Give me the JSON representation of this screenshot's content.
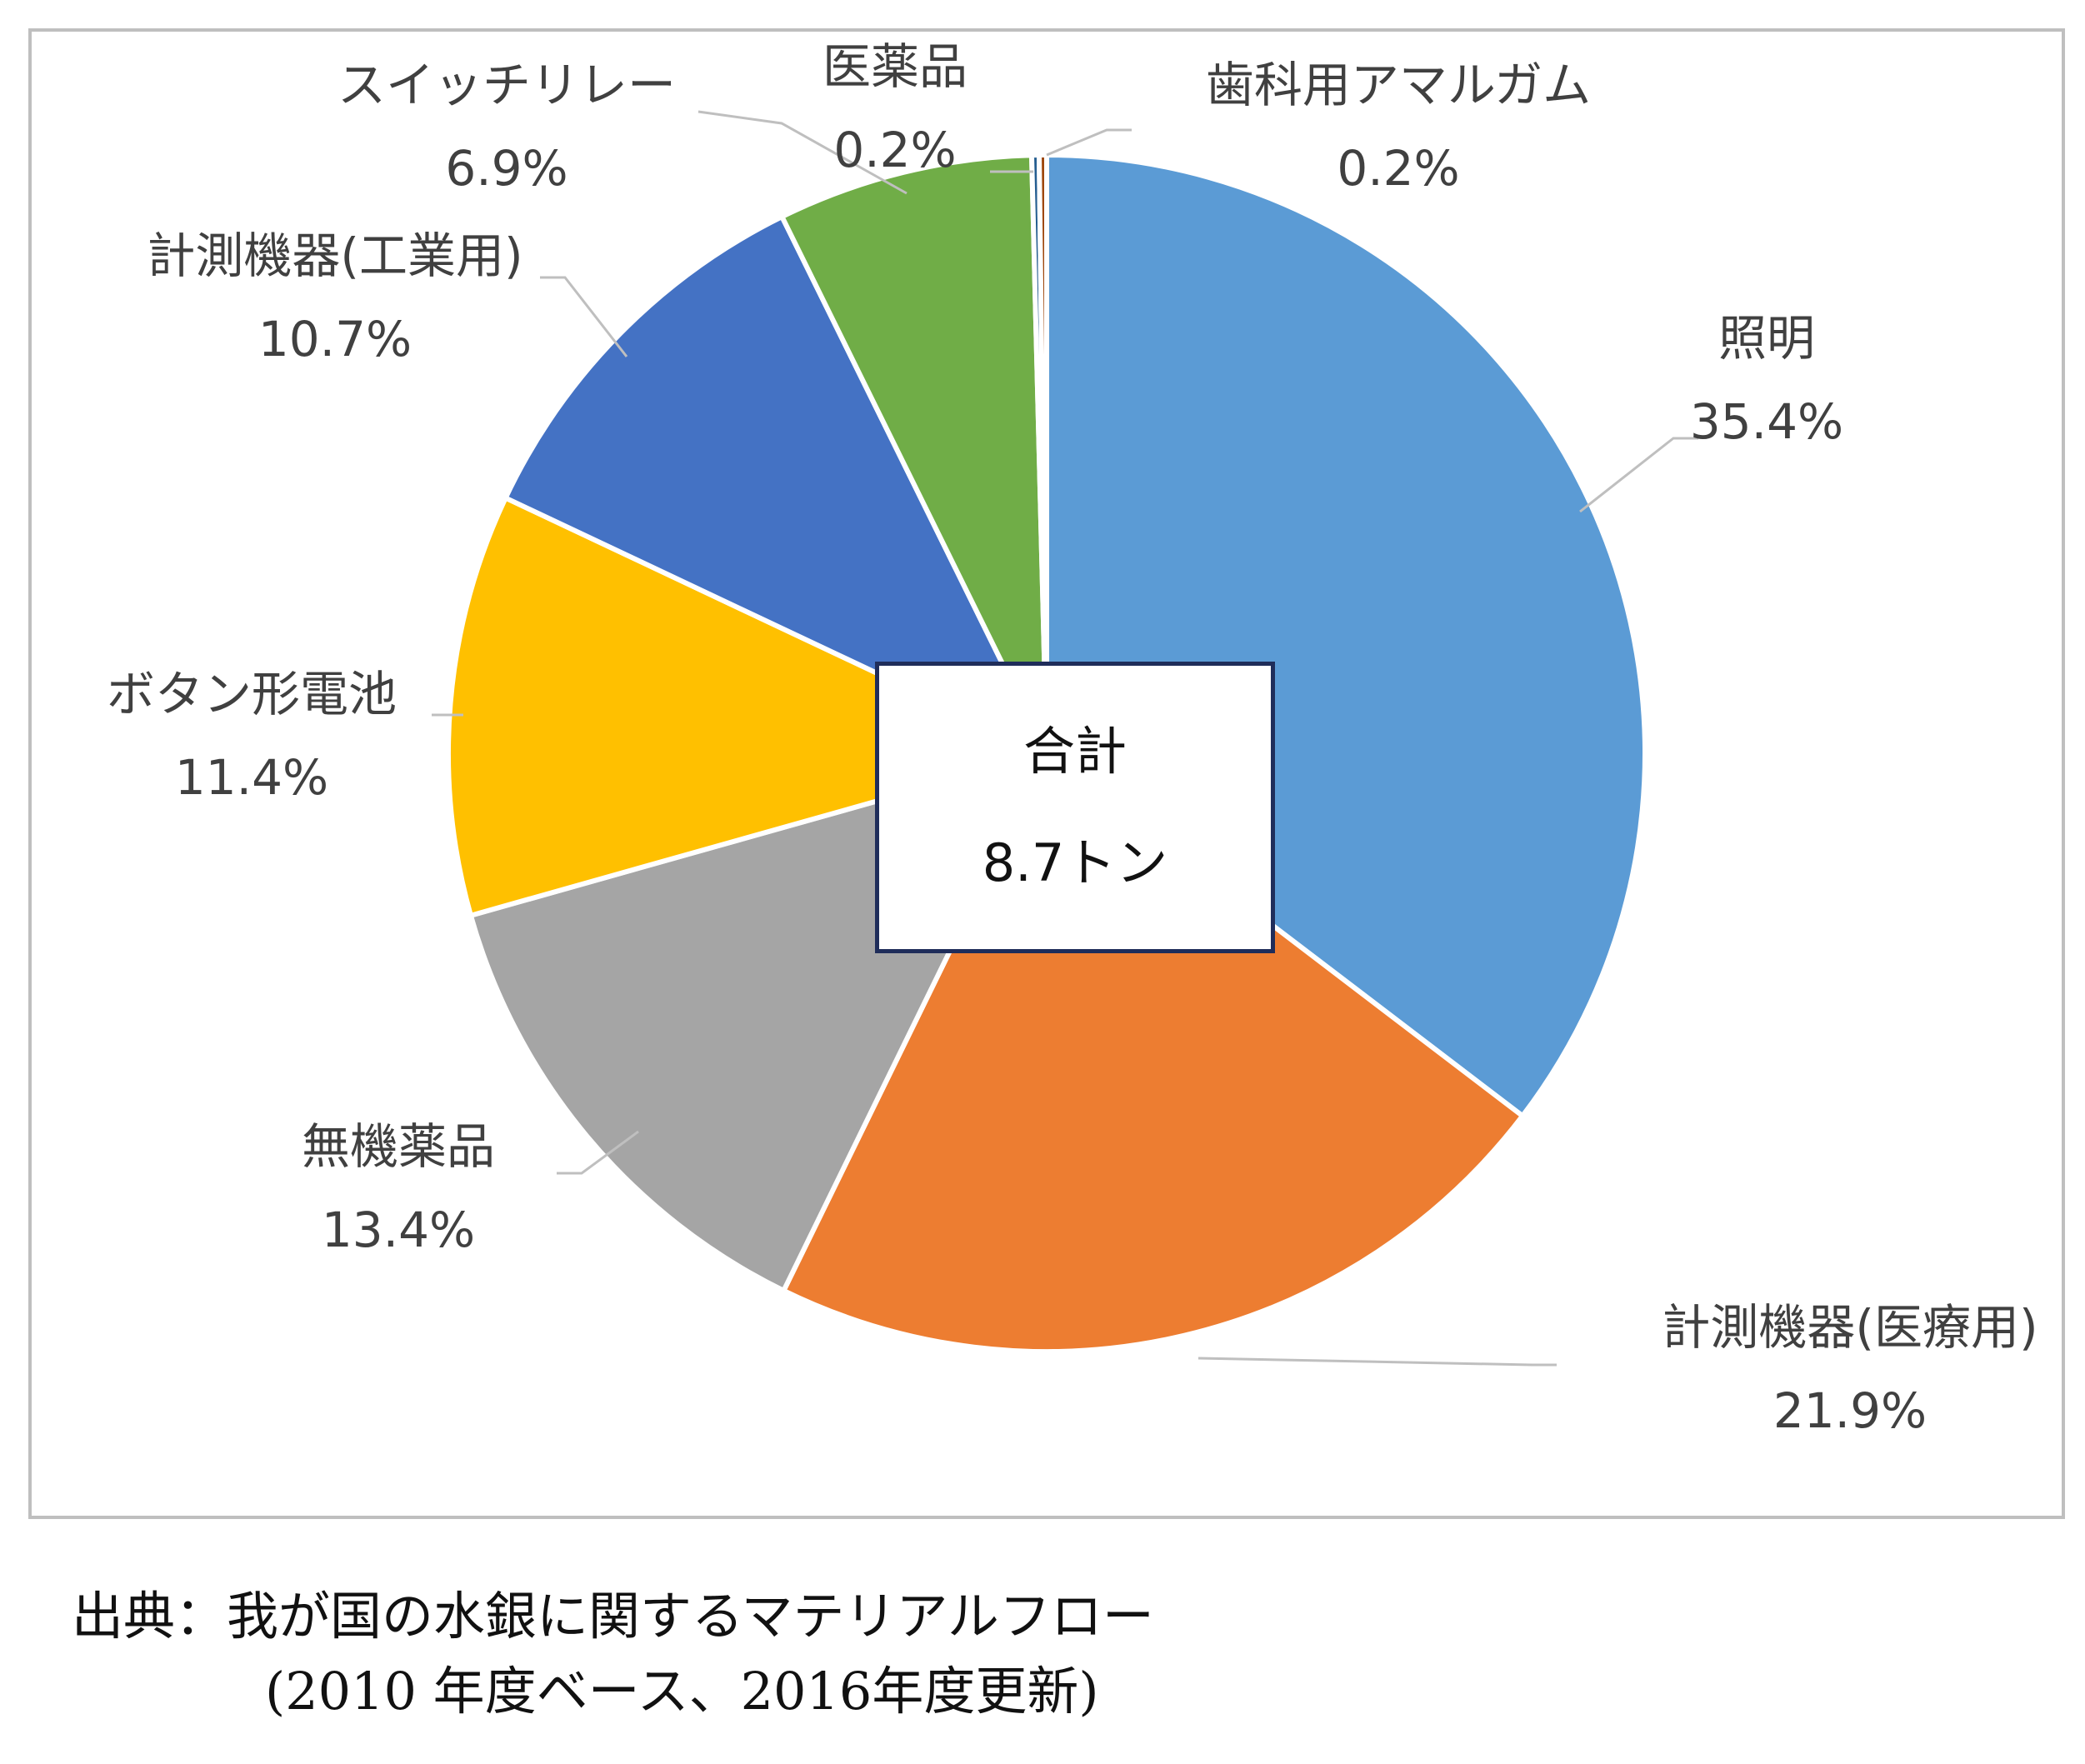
{
  "chart_data": {
    "type": "pie",
    "slices": [
      {
        "label": "照明",
        "value": 35.4,
        "value_label": "35.4%",
        "color": "#5b9bd5"
      },
      {
        "label": "計測機器(医療用)",
        "value": 21.9,
        "value_label": "21.9%",
        "color": "#ed7d31"
      },
      {
        "label": "無機薬品",
        "value": 13.4,
        "value_label": "13.4%",
        "color": "#a5a5a5"
      },
      {
        "label": "ボタン形電池",
        "value": 11.4,
        "value_label": "11.4%",
        "color": "#ffc000"
      },
      {
        "label": "計測機器(工業用)",
        "value": 10.7,
        "value_label": "10.7%",
        "color": "#4472c4"
      },
      {
        "label": "スイッチリレー",
        "value": 6.9,
        "value_label": "6.9%",
        "color": "#70ad47"
      },
      {
        "label": "医薬品",
        "value": 0.2,
        "value_label": "0.2%",
        "color": "#255e91"
      },
      {
        "label": "歯科用アマルガム",
        "value": 0.2,
        "value_label": "0.2%",
        "color": "#9e480e"
      }
    ],
    "center_box": {
      "title": "合計",
      "value": "8.7トン"
    }
  },
  "source": {
    "line1": "出典：我が国の水銀に関するマテリアルフロー",
    "line2": "(2010 年度ベース、2016年度更新)"
  }
}
